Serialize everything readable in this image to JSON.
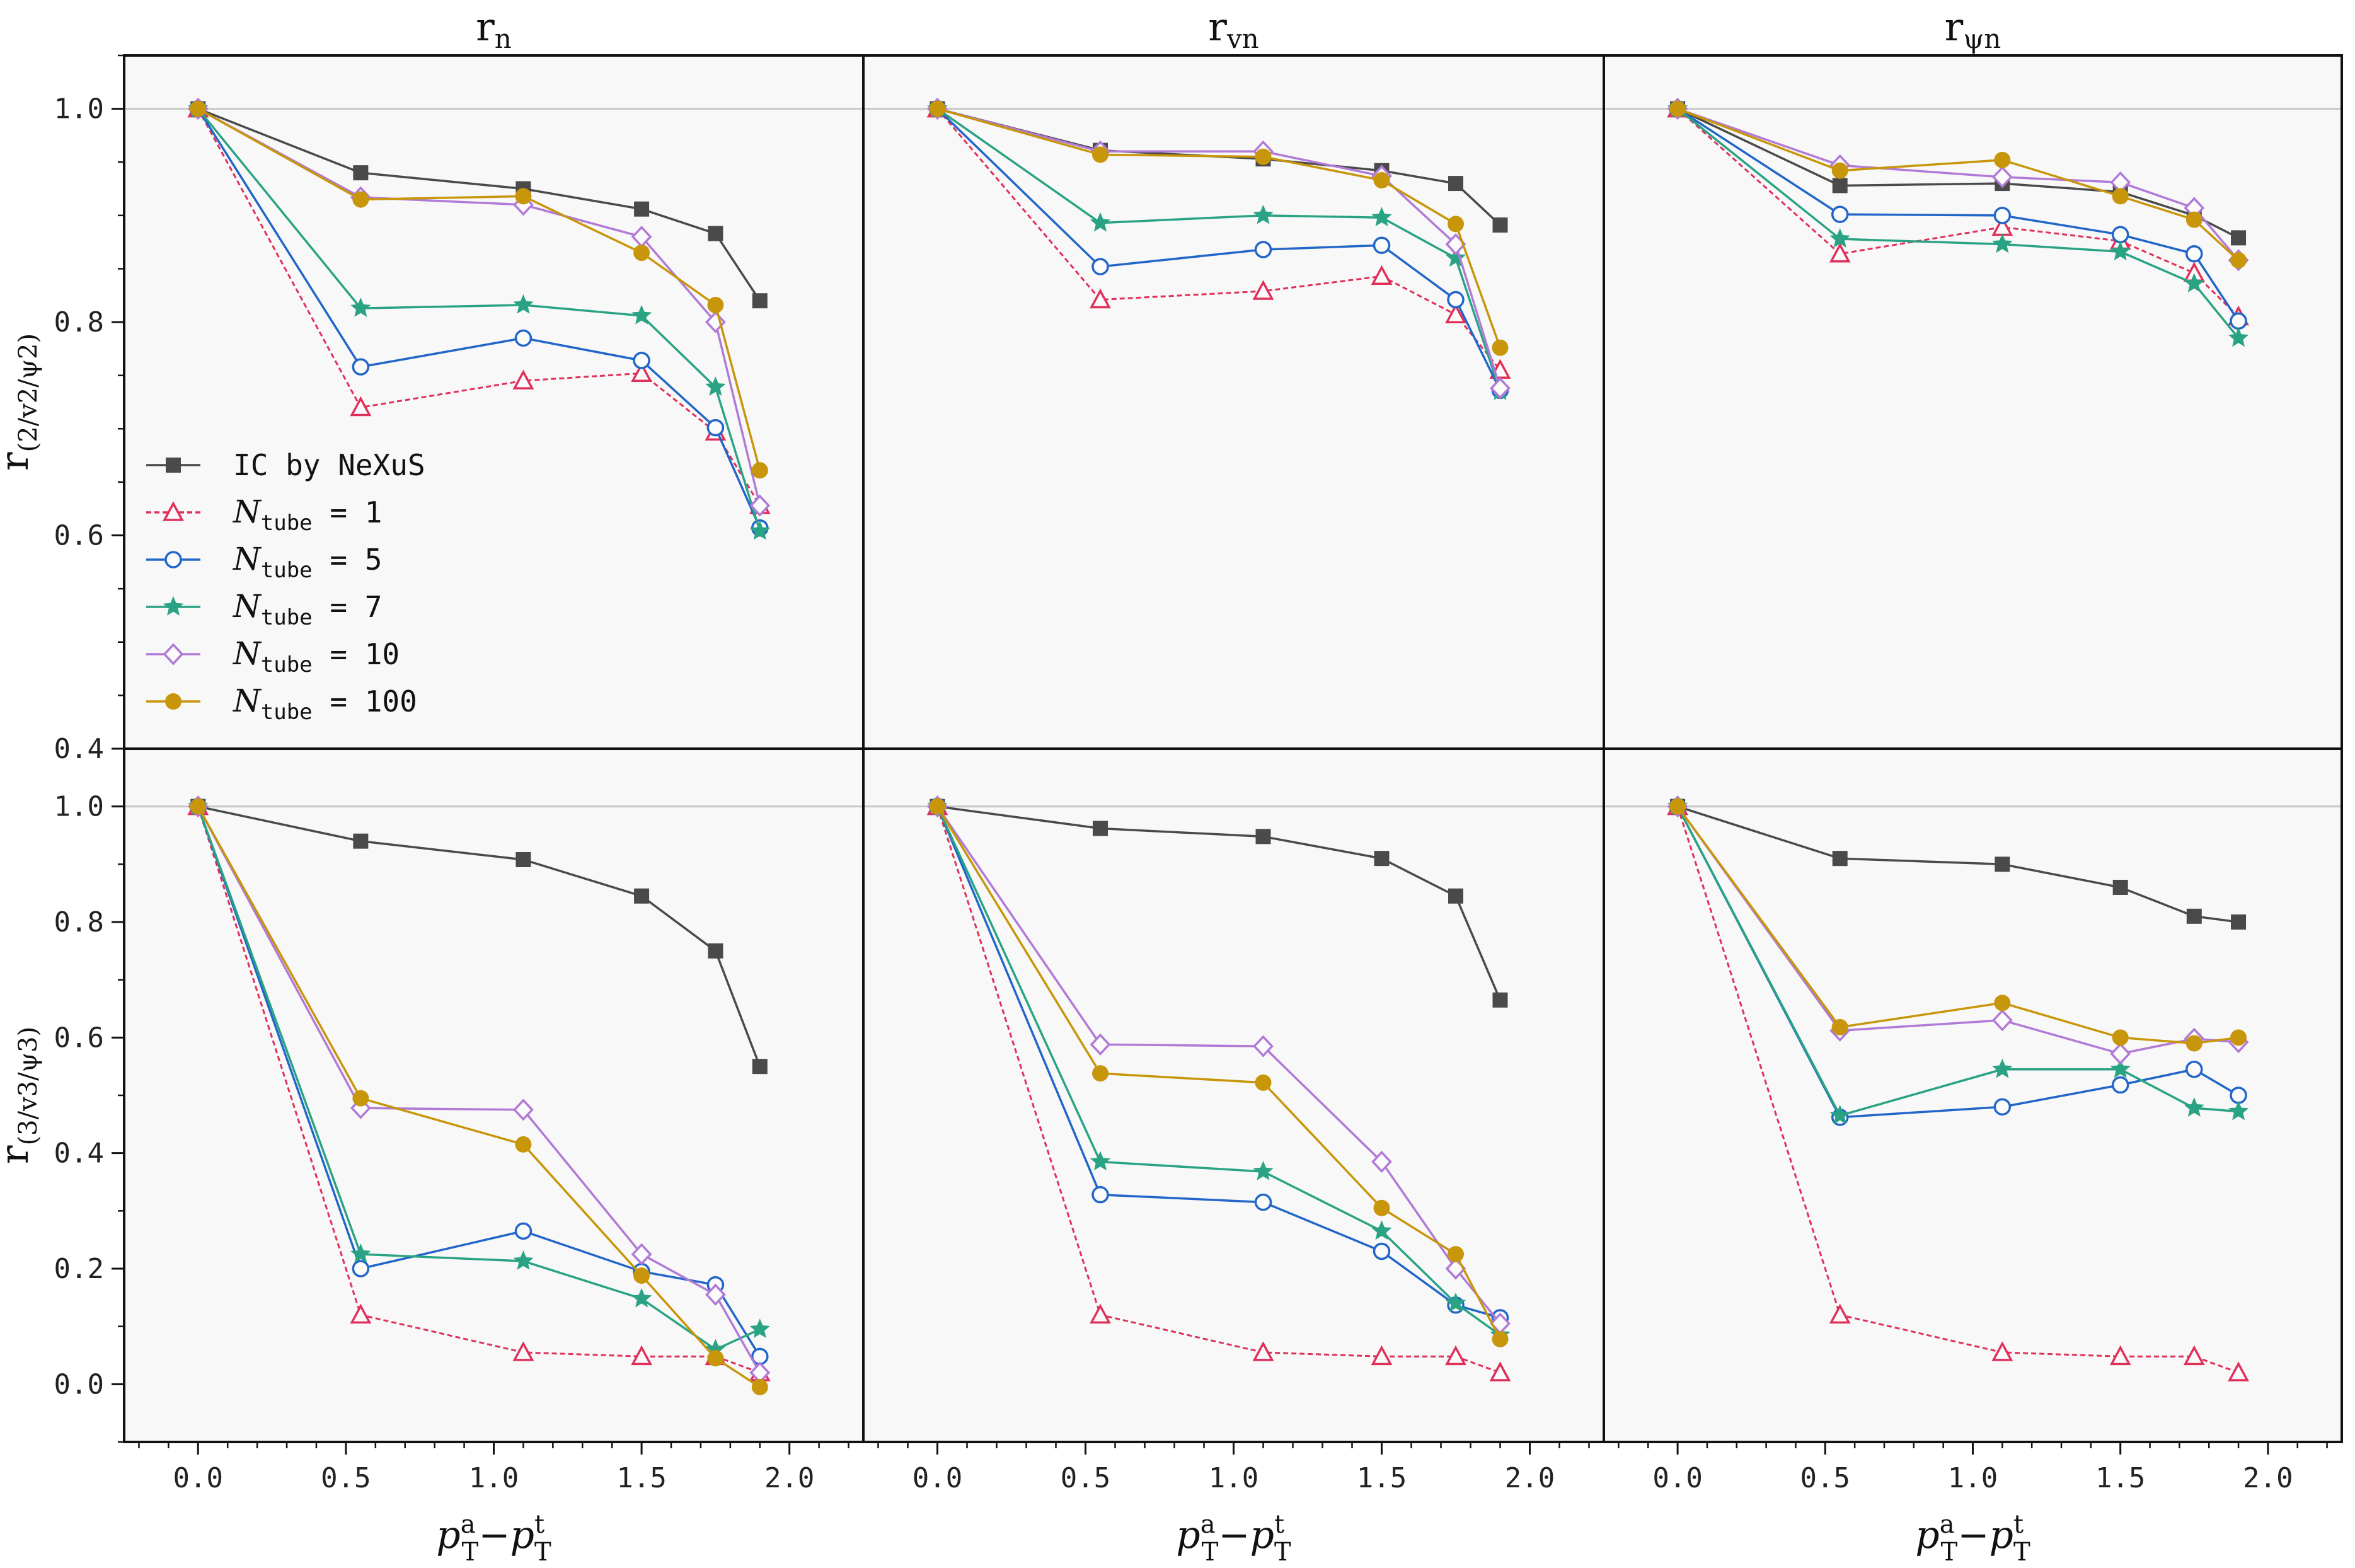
{
  "chart_data": {
    "type": "line",
    "grid": false,
    "colors": {
      "IC by NeXuS": "#4a4a4a",
      "N_tube = 1": "#e0305a",
      "N_tube = 5": "#2166c8",
      "N_tube = 7": "#2aa384",
      "N_tube = 10": "#b07ad6",
      "N_tube = 100": "#c8960a"
    },
    "markers": {
      "IC by NeXuS": "square",
      "N_tube = 1": "triangle",
      "N_tube = 5": "circle-open",
      "N_tube = 7": "star",
      "N_tube = 10": "diamond-open",
      "N_tube = 100": "circle-filled"
    },
    "column_titles": [
      {
        "main": "r",
        "sub": "n"
      },
      {
        "main": "r",
        "sub": "vn"
      },
      {
        "main": "r",
        "sub": "ψn"
      }
    ],
    "row_labels": [
      {
        "main": "r",
        "sub": "(2/v2/ψ2)"
      },
      {
        "main": "r",
        "sub": "(3/v3/ψ3)"
      }
    ],
    "xlabel": {
      "p": "p",
      "sup1": "a",
      "sub1": "T",
      "dash": "−",
      "sup2": "t",
      "sub2": "T"
    },
    "xlim": [
      -0.25,
      2.25
    ],
    "xticks": [
      "0.0",
      "0.5",
      "1.0",
      "1.5",
      "2.0"
    ],
    "reference_line_y": 1.0,
    "rows": [
      {
        "ylim": [
          0.4,
          1.05
        ],
        "yticks": [
          "0.4",
          "0.6",
          "0.8",
          "1.0"
        ],
        "panels": [
          {
            "x": [
              0.0,
              0.55,
              1.1,
              1.5,
              1.75,
              1.9
            ],
            "series": [
              {
                "name": "IC by NeXuS",
                "values": [
                  1.0,
                  0.94,
                  0.925,
                  0.906,
                  0.883,
                  0.82
                ]
              },
              {
                "name": "N_tube = 1",
                "values": [
                  1.0,
                  0.72,
                  0.745,
                  0.752,
                  0.697,
                  0.628
                ]
              },
              {
                "name": "N_tube = 5",
                "values": [
                  1.0,
                  0.758,
                  0.785,
                  0.764,
                  0.701,
                  0.607
                ]
              },
              {
                "name": "N_tube = 7",
                "values": [
                  1.0,
                  0.813,
                  0.816,
                  0.806,
                  0.739,
                  0.604
                ]
              },
              {
                "name": "N_tube = 10",
                "values": [
                  1.0,
                  0.917,
                  0.91,
                  0.88,
                  0.8,
                  0.628
                ]
              },
              {
                "name": "N_tube = 100",
                "values": [
                  1.0,
                  0.915,
                  0.918,
                  0.865,
                  0.816,
                  0.661
                ]
              }
            ]
          },
          {
            "x": [
              0.0,
              0.55,
              1.1,
              1.5,
              1.75,
              1.9
            ],
            "series": [
              {
                "name": "IC by NeXuS",
                "values": [
                  1.0,
                  0.961,
                  0.953,
                  0.942,
                  0.93,
                  0.891
                ]
              },
              {
                "name": "N_tube = 1",
                "values": [
                  1.0,
                  0.821,
                  0.829,
                  0.843,
                  0.807,
                  0.755
                ]
              },
              {
                "name": "N_tube = 5",
                "values": [
                  1.0,
                  0.852,
                  0.868,
                  0.872,
                  0.821,
                  0.736
                ]
              },
              {
                "name": "N_tube = 7",
                "values": [
                  1.0,
                  0.893,
                  0.9,
                  0.898,
                  0.86,
                  0.735
                ]
              },
              {
                "name": "N_tube = 10",
                "values": [
                  1.0,
                  0.96,
                  0.96,
                  0.937,
                  0.873,
                  0.738
                ]
              },
              {
                "name": "N_tube = 100",
                "values": [
                  1.0,
                  0.957,
                  0.955,
                  0.933,
                  0.892,
                  0.776
                ]
              }
            ]
          },
          {
            "x": [
              0.0,
              0.55,
              1.1,
              1.5,
              1.75,
              1.9
            ],
            "series": [
              {
                "name": "IC by NeXuS",
                "values": [
                  1.0,
                  0.928,
                  0.93,
                  0.922,
                  0.9,
                  0.879
                ]
              },
              {
                "name": "N_tube = 1",
                "values": [
                  1.0,
                  0.864,
                  0.889,
                  0.876,
                  0.846,
                  0.805
                ]
              },
              {
                "name": "N_tube = 5",
                "values": [
                  1.0,
                  0.901,
                  0.9,
                  0.882,
                  0.864,
                  0.801
                ]
              },
              {
                "name": "N_tube = 7",
                "values": [
                  1.0,
                  0.878,
                  0.873,
                  0.866,
                  0.836,
                  0.785
                ]
              },
              {
                "name": "N_tube = 10",
                "values": [
                  1.0,
                  0.947,
                  0.936,
                  0.931,
                  0.907,
                  0.858
                ]
              },
              {
                "name": "N_tube = 100",
                "values": [
                  1.0,
                  0.942,
                  0.952,
                  0.918,
                  0.896,
                  0.858
                ]
              }
            ]
          }
        ]
      },
      {
        "ylim": [
          -0.1,
          1.1
        ],
        "yticks": [
          "0.0",
          "0.2",
          "0.4",
          "0.6",
          "0.8",
          "1.0"
        ],
        "panels": [
          {
            "x": [
              0.0,
              0.55,
              1.1,
              1.5,
              1.75,
              1.9
            ],
            "series": [
              {
                "name": "IC by NeXuS",
                "values": [
                  1.0,
                  0.94,
                  0.908,
                  0.845,
                  0.75,
                  0.55
                ]
              },
              {
                "name": "N_tube = 1",
                "values": [
                  1.0,
                  0.12,
                  0.055,
                  0.048,
                  0.048,
                  0.02
                ]
              },
              {
                "name": "N_tube = 5",
                "values": [
                  1.0,
                  0.2,
                  0.265,
                  0.195,
                  0.172,
                  0.048
                ]
              },
              {
                "name": "N_tube = 7",
                "values": [
                  1.0,
                  0.225,
                  0.213,
                  0.148,
                  0.06,
                  0.095
                ]
              },
              {
                "name": "N_tube = 10",
                "values": [
                  1.0,
                  0.478,
                  0.475,
                  0.225,
                  0.155,
                  0.02
                ]
              },
              {
                "name": "N_tube = 100",
                "values": [
                  1.0,
                  0.495,
                  0.415,
                  0.188,
                  0.045,
                  -0.005
                ]
              }
            ]
          },
          {
            "x": [
              0.0,
              0.55,
              1.1,
              1.5,
              1.75,
              1.9
            ],
            "series": [
              {
                "name": "IC by NeXuS",
                "values": [
                  1.0,
                  0.962,
                  0.948,
                  0.91,
                  0.845,
                  0.665
                ]
              },
              {
                "name": "N_tube = 1",
                "values": [
                  1.0,
                  0.12,
                  0.055,
                  0.048,
                  0.048,
                  0.02
                ]
              },
              {
                "name": "N_tube = 5",
                "values": [
                  1.0,
                  0.328,
                  0.315,
                  0.23,
                  0.137,
                  0.115
                ]
              },
              {
                "name": "N_tube = 7",
                "values": [
                  1.0,
                  0.385,
                  0.368,
                  0.265,
                  0.14,
                  0.085
                ]
              },
              {
                "name": "N_tube = 10",
                "values": [
                  1.0,
                  0.588,
                  0.585,
                  0.385,
                  0.2,
                  0.105
                ]
              },
              {
                "name": "N_tube = 100",
                "values": [
                  1.0,
                  0.538,
                  0.522,
                  0.305,
                  0.225,
                  0.078
                ]
              }
            ]
          },
          {
            "x": [
              0.0,
              0.55,
              1.1,
              1.5,
              1.75,
              1.9
            ],
            "series": [
              {
                "name": "IC by NeXuS",
                "values": [
                  1.0,
                  0.91,
                  0.9,
                  0.86,
                  0.81,
                  0.8
                ]
              },
              {
                "name": "N_tube = 1",
                "values": [
                  1.0,
                  0.12,
                  0.055,
                  0.048,
                  0.048,
                  0.02
                ]
              },
              {
                "name": "N_tube = 5",
                "values": [
                  1.0,
                  0.462,
                  0.48,
                  0.518,
                  0.545,
                  0.5
                ]
              },
              {
                "name": "N_tube = 7",
                "values": [
                  1.0,
                  0.465,
                  0.545,
                  0.545,
                  0.478,
                  0.472
                ]
              },
              {
                "name": "N_tube = 10",
                "values": [
                  1.0,
                  0.612,
                  0.63,
                  0.572,
                  0.598,
                  0.592
                ]
              },
              {
                "name": "N_tube = 100",
                "values": [
                  1.0,
                  0.618,
                  0.66,
                  0.6,
                  0.59,
                  0.6
                ]
              }
            ]
          }
        ]
      }
    ],
    "legend": {
      "placement": "upper-left panel, lower-left",
      "entries": [
        {
          "series": "IC by NeXuS",
          "text": "IC by NeXuS"
        },
        {
          "series": "N_tube = 1",
          "italic": "N",
          "sub": "tube",
          "text": " = 1"
        },
        {
          "series": "N_tube = 5",
          "italic": "N",
          "sub": "tube",
          "text": " = 5"
        },
        {
          "series": "N_tube = 7",
          "italic": "N",
          "sub": "tube",
          "text": " = 7"
        },
        {
          "series": "N_tube = 10",
          "italic": "N",
          "sub": "tube",
          "text": " = 10"
        },
        {
          "series": "N_tube = 100",
          "italic": "N",
          "sub": "tube",
          "text": " = 100"
        }
      ]
    }
  }
}
